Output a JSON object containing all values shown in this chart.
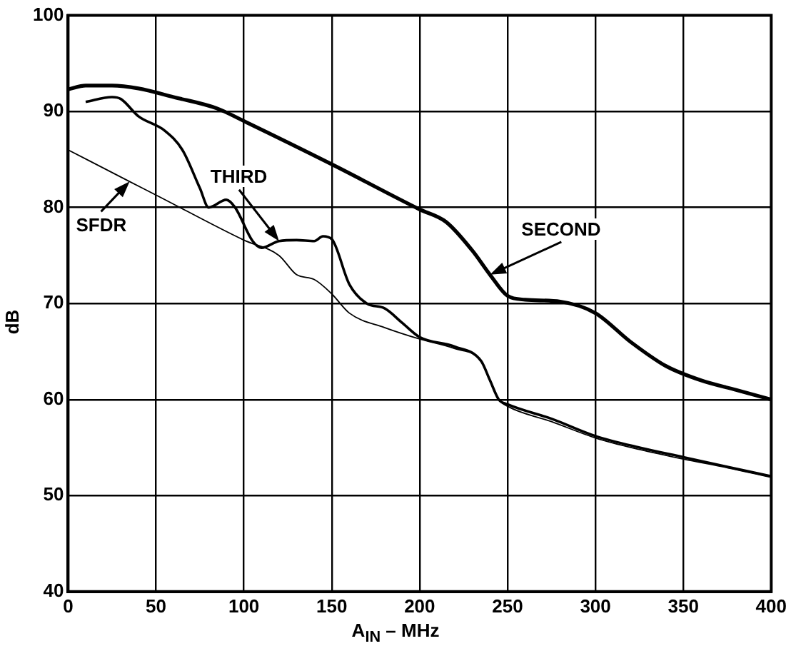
{
  "chart_data": {
    "type": "line",
    "xlabel": "A$_{IN}$ – MHz",
    "ylabel": "dB",
    "xlim": [
      0,
      400
    ],
    "ylim": [
      40,
      100
    ],
    "xticks": [
      0,
      50,
      100,
      150,
      200,
      250,
      300,
      350,
      400
    ],
    "yticks": [
      40,
      50,
      60,
      70,
      80,
      90,
      100
    ],
    "grid": true,
    "marker": "none",
    "line_style": "solid",
    "series": [
      {
        "name": "SECOND",
        "color": "#000000",
        "x": [
          0,
          10,
          25,
          40,
          60,
          85,
          100,
          150,
          200,
          215,
          230,
          240,
          250,
          260,
          280,
          300,
          320,
          340,
          360,
          380,
          400
        ],
        "values": [
          92.3,
          92.7,
          92.7,
          92.4,
          91.5,
          90.3,
          89,
          84.5,
          79.8,
          78.5,
          75.5,
          73,
          70.8,
          70.4,
          70.2,
          69,
          66,
          63.5,
          62,
          61,
          60
        ]
      },
      {
        "name": "THIRD",
        "color": "#000000",
        "x": [
          10,
          25,
          30,
          40,
          55,
          65,
          75,
          80,
          90,
          95,
          105,
          110,
          120,
          130,
          140,
          145,
          150,
          160,
          170,
          180,
          190,
          200,
          220,
          235,
          240,
          245,
          250,
          275,
          300,
          325,
          350,
          375,
          400
        ],
        "values": [
          91,
          91.5,
          91.3,
          89.5,
          88,
          86,
          82,
          80,
          80.8,
          80,
          76.5,
          75.8,
          76.5,
          76.6,
          76.5,
          77,
          76.7,
          72,
          70,
          69.5,
          68,
          66.5,
          65.5,
          64,
          62,
          60,
          59.5,
          58,
          56.2,
          55,
          54,
          53,
          52
        ]
      },
      {
        "name": "SFDR",
        "color": "#000000",
        "x": [
          0,
          35,
          50,
          100,
          120,
          130,
          140,
          150,
          160,
          180,
          200,
          220,
          235,
          240,
          245,
          250,
          275,
          300,
          325,
          350,
          375,
          400
        ],
        "values": [
          86,
          82.7,
          81.3,
          76.6,
          75,
          73,
          72.5,
          71,
          69,
          67.5,
          66.3,
          65.3,
          64,
          62,
          60,
          59.3,
          57.7,
          56,
          54.8,
          53.8,
          52.9,
          51.9
        ]
      }
    ]
  }
}
